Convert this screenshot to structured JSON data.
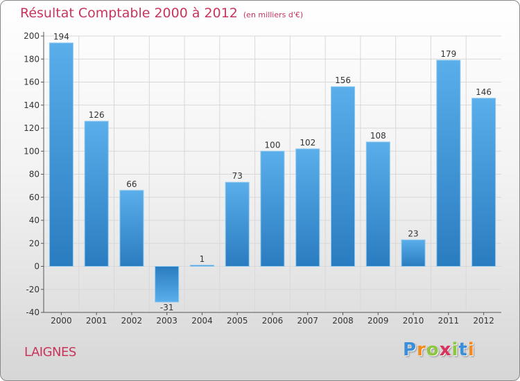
{
  "title": "Résultat Comptable 2000 à 2012",
  "subtitle": "(en milliers d'€)",
  "commune": "LAIGNES",
  "logo": {
    "text": "Proxiti",
    "letter_colors": [
      "#3a8fd8",
      "#f28a1e",
      "#8dc63f",
      "#d8335e",
      "#8dc63f",
      "#3a8fd8",
      "#f28a1e"
    ]
  },
  "colors": {
    "title": "#c8345c",
    "bar_light": "#5aaeea",
    "bar_dark": "#2a7cc0",
    "grid": "#d8d8d8",
    "axis": "#555555"
  },
  "chart_data": {
    "type": "bar",
    "title": "Résultat Comptable 2000 à 2012",
    "subtitle": "(en milliers d'€)",
    "xlabel": "",
    "ylabel": "",
    "categories": [
      "2000",
      "2001",
      "2002",
      "2003",
      "2004",
      "2005",
      "2006",
      "2007",
      "2008",
      "2009",
      "2010",
      "2011",
      "2012"
    ],
    "values": [
      194,
      126,
      66,
      -31,
      1,
      73,
      100,
      102,
      156,
      108,
      23,
      179,
      146
    ],
    "ylim": [
      -40,
      200
    ],
    "yticks": [
      -40,
      -20,
      0,
      20,
      40,
      60,
      80,
      100,
      120,
      140,
      160,
      180,
      200
    ],
    "grid": true,
    "legend": "none"
  }
}
